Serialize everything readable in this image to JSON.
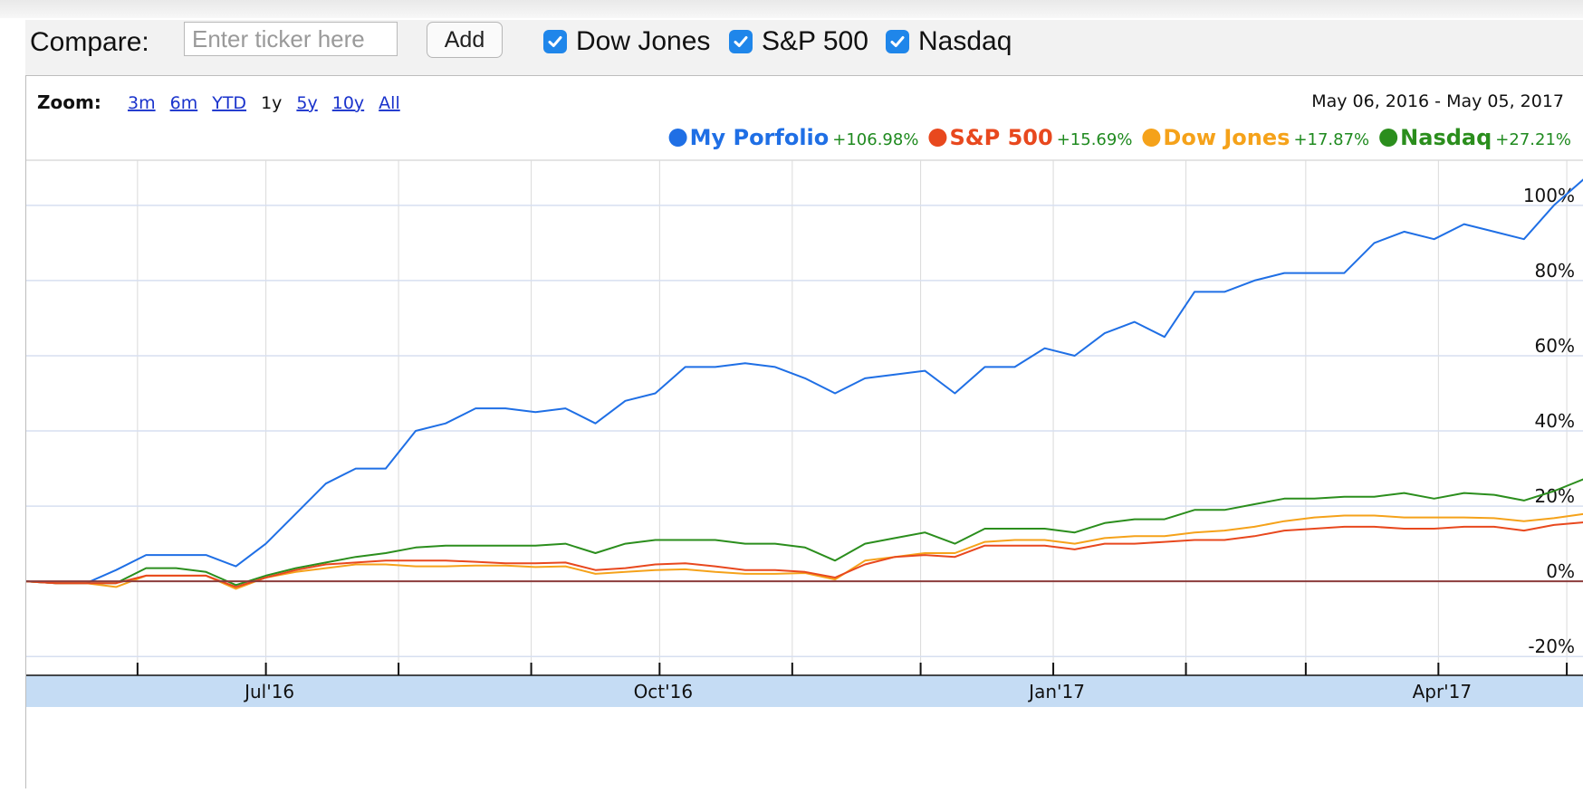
{
  "toolbar": {
    "compare_label": "Compare:",
    "ticker_placeholder": "Enter ticker here",
    "add_label": "Add",
    "toggles": [
      {
        "label": "Dow Jones",
        "checked": true
      },
      {
        "label": "S&P 500",
        "checked": true
      },
      {
        "label": "Nasdaq",
        "checked": true
      }
    ]
  },
  "zoom": {
    "label": "Zoom:",
    "options": [
      "3m",
      "6m",
      "YTD",
      "1y",
      "5y",
      "10y",
      "All"
    ],
    "active": "1y",
    "date_range": "May 06, 2016  -  May 05, 2017"
  },
  "colors": {
    "link": "#1a33cc",
    "up": "#1f8a1f",
    "grid": "#d7dff0",
    "axis_band": "#c5dcf4",
    "zero_line": "#8b3c3c"
  },
  "chart_data": {
    "type": "line",
    "x": [
      "2016-05-06",
      "2016-05-13",
      "2016-05-20",
      "2016-05-27",
      "2016-06-03",
      "2016-06-10",
      "2016-06-17",
      "2016-06-24",
      "2016-07-01",
      "2016-07-08",
      "2016-07-15",
      "2016-07-22",
      "2016-07-29",
      "2016-08-05",
      "2016-08-12",
      "2016-08-19",
      "2016-08-26",
      "2016-09-02",
      "2016-09-09",
      "2016-09-16",
      "2016-09-23",
      "2016-09-30",
      "2016-10-07",
      "2016-10-14",
      "2016-10-21",
      "2016-10-28",
      "2016-11-04",
      "2016-11-11",
      "2016-11-18",
      "2016-11-25",
      "2016-12-02",
      "2016-12-09",
      "2016-12-16",
      "2016-12-23",
      "2016-12-30",
      "2017-01-06",
      "2017-01-13",
      "2017-01-20",
      "2017-01-27",
      "2017-02-03",
      "2017-02-10",
      "2017-02-17",
      "2017-02-24",
      "2017-03-03",
      "2017-03-10",
      "2017-03-17",
      "2017-03-24",
      "2017-03-31",
      "2017-04-07",
      "2017-04-14",
      "2017-04-21",
      "2017-04-28",
      "2017-05-05"
    ],
    "series": [
      {
        "name": "My Porfolio",
        "color": "#1f6fe5",
        "change": "+106.98%",
        "values": [
          0,
          -0.5,
          -0.5,
          3,
          7,
          7,
          7,
          4,
          10,
          18,
          26,
          30,
          30,
          40,
          42,
          46,
          46,
          45,
          46,
          42,
          48,
          50,
          57,
          57,
          58,
          57,
          54,
          50,
          54,
          55,
          56,
          50,
          57,
          57,
          62,
          60,
          66,
          69,
          65,
          77,
          77,
          80,
          82,
          82,
          82,
          90,
          93,
          91,
          95,
          93,
          91,
          100,
          107
        ]
      },
      {
        "name": "S&P 500",
        "color": "#e8481e",
        "change": "+15.69%",
        "values": [
          0,
          -0.5,
          -0.5,
          -0.5,
          1.5,
          1.5,
          1.5,
          -1.5,
          1,
          3,
          4.5,
          5,
          5.5,
          5.5,
          5.5,
          5.2,
          4.8,
          4.8,
          5,
          3,
          3.5,
          4.5,
          4.8,
          4,
          3,
          3,
          2.5,
          1,
          4.5,
          6.5,
          7,
          6.5,
          9.5,
          9.5,
          9.5,
          8.5,
          10,
          10,
          10.5,
          11,
          11,
          12,
          13.5,
          14,
          14.5,
          14.5,
          14,
          14,
          14.5,
          14.5,
          13.5,
          15,
          15.7
        ]
      },
      {
        "name": "Dow Jones",
        "color": "#f5a21a",
        "change": "+17.87%",
        "values": [
          0,
          -0.5,
          -0.5,
          -1.5,
          1.5,
          1.5,
          1.5,
          -2,
          1,
          2.5,
          3.5,
          4.5,
          4.5,
          4,
          4,
          4.2,
          4.2,
          3.8,
          4,
          2,
          2.5,
          3,
          3.2,
          2.5,
          2,
          2,
          2.2,
          0.5,
          5.5,
          6.5,
          7.5,
          7.5,
          10.5,
          11,
          11,
          10,
          11.5,
          12,
          12,
          13,
          13.5,
          14.5,
          16,
          17,
          17.5,
          17.5,
          17,
          17,
          17,
          16.8,
          16,
          16.8,
          17.9
        ]
      },
      {
        "name": "Nasdaq",
        "color": "#2b8e1d",
        "change": "+27.21%",
        "values": [
          0,
          -0.5,
          -0.5,
          -0.5,
          3.5,
          3.5,
          2.5,
          -1,
          1.5,
          3.5,
          5,
          6.5,
          7.5,
          9,
          9.5,
          9.5,
          9.5,
          9.5,
          10,
          7.5,
          10,
          11,
          11,
          11,
          10,
          10,
          9,
          5.5,
          10,
          11.5,
          13,
          10,
          14,
          14,
          14,
          13,
          15.5,
          16.5,
          16.5,
          19,
          19,
          20.5,
          22,
          22,
          22.5,
          22.5,
          23.5,
          22,
          23.5,
          23,
          21.5,
          24,
          27.2
        ]
      }
    ],
    "y_ticks": [
      "100%",
      "80%",
      "60%",
      "40%",
      "20%",
      "0%",
      "-20%"
    ],
    "ylim": [
      -25,
      112
    ],
    "x_tick_labels": [
      {
        "date": "2016-07-01",
        "label": "Jul'16"
      },
      {
        "date": "2016-10-01",
        "label": "Oct'16"
      },
      {
        "date": "2017-01-01",
        "label": "Jan'17"
      },
      {
        "date": "2017-04-01",
        "label": "Apr'17"
      }
    ],
    "x_minor_ticks": [
      "2016-05-01",
      "2016-06-01",
      "2016-08-01",
      "2016-09-01",
      "2016-11-01",
      "2016-12-01",
      "2017-02-01",
      "2017-03-01",
      "2017-05-01"
    ],
    "grid": true,
    "legend_position": "top-right"
  }
}
